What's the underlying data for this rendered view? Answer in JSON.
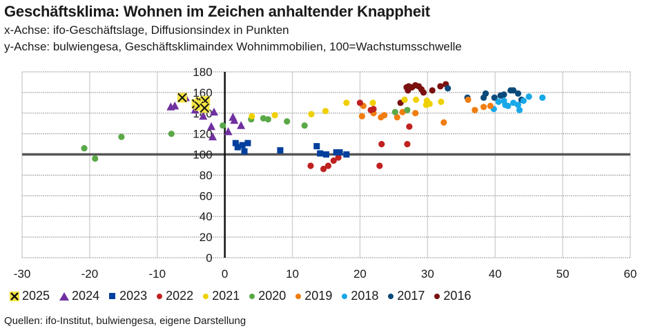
{
  "header": {
    "title": "Geschäftsklima: Wohnen im Zeichen anhaltender Knappheit",
    "subtitle_x": "x-Achse: ifo-Geschäftslage, Diffusionsindex in Punkten",
    "subtitle_y": "y-Achse: bulwiengesa, Geschäftsklimaindex Wohnimmobilien, 100=Wachstumsschwelle"
  },
  "source": "Quellen: ifo-Institut, bulwiengesa, eigene Darstellung",
  "chart_data": {
    "type": "scatter",
    "title": "Geschäftsklima: Wohnen im Zeichen anhaltender Knappheit",
    "xlabel": "ifo-Geschäftslage, Diffusionsindex in Punkten",
    "ylabel": "bulwiengesa, Geschäftsklimaindex Wohnimmobilien, 100=Wachstumsschwelle",
    "xlim": [
      -30,
      60
    ],
    "ylim": [
      0,
      180
    ],
    "xticks": [
      "-30",
      "-20",
      "-10",
      "0",
      "10",
      "20",
      "30",
      "40",
      "50",
      "60"
    ],
    "yticks": [
      "0",
      "20",
      "40",
      "60",
      "80",
      "100",
      "120",
      "140",
      "160",
      "180"
    ],
    "reference_line_y": 100,
    "grid": true,
    "legend_position": "bottom",
    "series": [
      {
        "name": "2025",
        "marker": "x",
        "color": "#f5e642",
        "points": [
          [
            -6.3,
            155
          ],
          [
            -4.2,
            149
          ],
          [
            -3.6,
            151
          ],
          [
            -3.2,
            150
          ],
          [
            -2.9,
            152
          ],
          [
            -3.8,
            147
          ],
          [
            -3.0,
            145
          ]
        ]
      },
      {
        "name": "2024",
        "marker": "triangle",
        "color": "#7030a0",
        "points": [
          [
            -8.0,
            146
          ],
          [
            -7.4,
            147
          ],
          [
            -5.8,
            155
          ],
          [
            -4.4,
            143
          ],
          [
            -3.2,
            137
          ],
          [
            -1.6,
            141
          ],
          [
            -2.0,
            127
          ],
          [
            -1.8,
            117
          ],
          [
            0.5,
            122
          ],
          [
            1.2,
            136
          ],
          [
            1.4,
            133
          ],
          [
            2.4,
            128
          ]
        ]
      },
      {
        "name": "2023",
        "marker": "square",
        "color": "#003f9e",
        "points": [
          [
            1.6,
            111
          ],
          [
            1.9,
            107
          ],
          [
            2.6,
            109
          ],
          [
            3.4,
            111
          ],
          [
            2.9,
            103
          ],
          [
            8.2,
            104
          ],
          [
            13.6,
            108
          ],
          [
            14.1,
            101
          ],
          [
            15.0,
            100
          ],
          [
            16.5,
            102
          ],
          [
            17.0,
            102
          ],
          [
            18.0,
            100
          ]
        ]
      },
      {
        "name": "2022",
        "marker": "circle",
        "color": "#c0201f",
        "points": [
          [
            12.7,
            89
          ],
          [
            14.6,
            86
          ],
          [
            15.3,
            89
          ],
          [
            16.1,
            94
          ],
          [
            16.8,
            97
          ],
          [
            20.0,
            150
          ],
          [
            21.6,
            143
          ],
          [
            22.0,
            144
          ],
          [
            22.9,
            89
          ],
          [
            23.2,
            110
          ],
          [
            27.0,
            110
          ],
          [
            27.3,
            127
          ]
        ]
      },
      {
        "name": "2021",
        "marker": "circle",
        "color": "#f0d000",
        "points": [
          [
            4.0,
            137
          ],
          [
            7.4,
            138
          ],
          [
            12.8,
            139
          ],
          [
            14.9,
            142
          ],
          [
            18.0,
            150
          ],
          [
            21.9,
            150
          ],
          [
            28.3,
            153
          ],
          [
            29.8,
            148
          ],
          [
            29.9,
            152
          ],
          [
            30.3,
            149
          ],
          [
            32.0,
            151
          ],
          [
            26.6,
            153
          ]
        ]
      },
      {
        "name": "2020",
        "marker": "circle",
        "color": "#5aa848",
        "points": [
          [
            -20.8,
            106
          ],
          [
            -19.2,
            96
          ],
          [
            -15.3,
            117
          ],
          [
            -7.9,
            120
          ],
          [
            -0.3,
            128
          ],
          [
            3.9,
            134
          ],
          [
            5.7,
            135
          ],
          [
            6.4,
            134
          ],
          [
            9.2,
            132
          ],
          [
            11.8,
            128
          ],
          [
            25.2,
            141
          ],
          [
            27.0,
            143
          ]
        ]
      },
      {
        "name": "2019",
        "marker": "circle",
        "color": "#f07d10",
        "points": [
          [
            22.0,
            140
          ],
          [
            20.5,
            147
          ],
          [
            20.3,
            137
          ],
          [
            23.1,
            136
          ],
          [
            23.6,
            138
          ],
          [
            25.5,
            136
          ],
          [
            26.3,
            141
          ],
          [
            28.2,
            140
          ],
          [
            32.4,
            131
          ],
          [
            37.0,
            143
          ],
          [
            38.3,
            146
          ],
          [
            39.3,
            147
          ],
          [
            36.0,
            153
          ]
        ]
      },
      {
        "name": "2018",
        "marker": "circle",
        "color": "#18a8e8",
        "points": [
          [
            39.8,
            144
          ],
          [
            40.5,
            151
          ],
          [
            41.5,
            148
          ],
          [
            41.9,
            147
          ],
          [
            42.7,
            150
          ],
          [
            43.4,
            148
          ],
          [
            43.6,
            143
          ],
          [
            44.2,
            152
          ],
          [
            45.0,
            156
          ],
          [
            47.0,
            155
          ],
          [
            41.3,
            152
          ]
        ]
      },
      {
        "name": "2017",
        "marker": "circle",
        "color": "#0a4a7a",
        "points": [
          [
            33.0,
            164
          ],
          [
            35.9,
            155
          ],
          [
            38.3,
            155
          ],
          [
            38.6,
            159
          ],
          [
            39.9,
            155
          ],
          [
            40.8,
            157
          ],
          [
            41.3,
            158
          ],
          [
            42.3,
            162
          ],
          [
            42.7,
            162
          ],
          [
            43.4,
            159
          ],
          [
            43.9,
            153
          ]
        ]
      },
      {
        "name": "2016",
        "marker": "circle",
        "color": "#7a1010",
        "points": [
          [
            26.0,
            150
          ],
          [
            26.9,
            165
          ],
          [
            27.2,
            166
          ],
          [
            27.7,
            165
          ],
          [
            28.2,
            167
          ],
          [
            28.7,
            166
          ],
          [
            29.1,
            163
          ],
          [
            30.7,
            162
          ],
          [
            31.9,
            166
          ],
          [
            32.7,
            168
          ],
          [
            27.1,
            162
          ],
          [
            29.4,
            160
          ]
        ]
      }
    ]
  }
}
